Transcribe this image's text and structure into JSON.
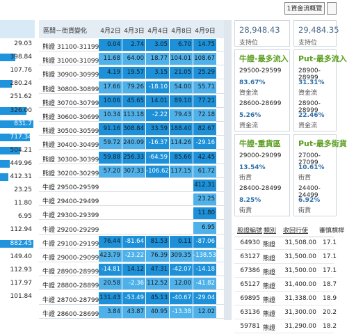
{
  "topbar": {
    "nav_button": "1資金流概覽"
  },
  "left_values": [
    {
      "value": "29.03",
      "bar": 0
    },
    {
      "value": "398.84",
      "bar": 0.45
    },
    {
      "value": "107.76",
      "bar": 0
    },
    {
      "value": "280.24",
      "bar": 0.35
    },
    {
      "value": "251.62",
      "bar": 0
    },
    {
      "value": "326.00",
      "bar": 0.8
    },
    {
      "value": "831.7",
      "bar": 1.0
    },
    {
      "value": "717.34",
      "bar": 0.9
    },
    {
      "value": "504.21",
      "bar": 0.6
    },
    {
      "value": "449.96",
      "bar": 0.3
    },
    {
      "value": "412.31",
      "bar": 0.25
    },
    {
      "value": "23.25",
      "bar": 0
    },
    {
      "value": "11.80",
      "bar": 0
    },
    {
      "value": "6.95",
      "bar": 0
    },
    {
      "value": "112.94",
      "bar": 0
    },
    {
      "value": "882.45",
      "bar": 1.0
    },
    {
      "value": "149.40",
      "bar": 0
    },
    {
      "value": "112.93",
      "bar": 0
    },
    {
      "value": "117.97",
      "bar": 0
    },
    {
      "value": "101.84",
      "bar": 0
    }
  ],
  "main_table": {
    "header_label": "區間－街貨變化",
    "dates": [
      "4月2日",
      "4月3日",
      "4月4日",
      "4月8日",
      "4月9日"
    ],
    "rows": [
      {
        "label": "熊證 31100-31199",
        "cells": [
          "0.04",
          "2.74",
          "3.05",
          "6.70",
          "14.75"
        ],
        "shade": [
          "d",
          "d",
          "d",
          "d",
          "d"
        ]
      },
      {
        "label": "熊證 31000-31099",
        "cells": [
          "11.68",
          "64.00",
          "18.77",
          "104.01",
          "108.67"
        ],
        "shade": [
          "l",
          "l",
          "l",
          "l",
          "l"
        ]
      },
      {
        "label": "熊證 30900-30999",
        "cells": [
          "4.19",
          "19.57",
          "3.15",
          "21.05",
          "25.29"
        ],
        "shade": [
          "d",
          "d",
          "d",
          "d",
          "d"
        ]
      },
      {
        "label": "熊證 30800-30899",
        "cells": [
          "17.66",
          "79.26",
          "-18.10",
          "54.00",
          "55.71"
        ],
        "shade": [
          "l",
          "l",
          "d",
          "l",
          "l"
        ]
      },
      {
        "label": "熊證 30700-30799",
        "cells": [
          "10.06",
          "45.65",
          "14.01",
          "89.10",
          "77.21"
        ],
        "shade": [
          "d",
          "d",
          "d",
          "d",
          "d"
        ]
      },
      {
        "label": "熊證 30600-30699",
        "cells": [
          "10.34",
          "113.18",
          "-2.22",
          "79.43",
          "72.18"
        ],
        "shade": [
          "l",
          "l",
          "d",
          "l",
          "l"
        ]
      },
      {
        "label": "熊證 30500-30599",
        "cells": [
          "91.16",
          "308.84",
          "33.59",
          "188.40",
          "82.67"
        ],
        "shade": [
          "d",
          "d",
          "d",
          "d",
          "d"
        ]
      },
      {
        "label": "熊證 30400-30499",
        "cells": [
          "59.72",
          "240.09",
          "-16.37",
          "114.26",
          "-29.16"
        ],
        "shade": [
          "l",
          "l",
          "d",
          "l",
          "d"
        ]
      },
      {
        "label": "熊證 30300-30399",
        "cells": [
          "59.88",
          "256.33",
          "-64.59",
          "85.66",
          "42.45"
        ],
        "shade": [
          "d",
          "d",
          "d",
          "d",
          "d"
        ]
      },
      {
        "label": "熊證 30200-30299",
        "cells": [
          "57.20",
          "307.33",
          "-106.62",
          "117.15",
          "61.72"
        ],
        "shade": [
          "l",
          "l",
          "d",
          "l",
          "l"
        ]
      },
      {
        "label": "牛證 29500-29599",
        "cells": [
          "",
          "",
          "",
          "",
          "412.31"
        ],
        "shade": [
          "w",
          "w",
          "w",
          "w",
          "d"
        ]
      },
      {
        "label": "牛證 29400-29499",
        "cells": [
          "",
          "",
          "",
          "",
          "23.25"
        ],
        "shade": [
          "w",
          "w",
          "w",
          "w",
          "l"
        ]
      },
      {
        "label": "牛證 29300-29399",
        "cells": [
          "",
          "",
          "",
          "",
          "11.80"
        ],
        "shade": [
          "w",
          "w",
          "w",
          "w",
          "d"
        ]
      },
      {
        "label": "牛證 29200-29299",
        "cells": [
          "",
          "",
          "",
          "",
          "6.95"
        ],
        "shade": [
          "w",
          "w",
          "w",
          "w",
          "l"
        ]
      },
      {
        "label": "牛證 29100-29199",
        "cells": [
          "76.44",
          "-81.64",
          "81.53",
          "0.11",
          "-87.06"
        ],
        "shade": [
          "d",
          "d",
          "d",
          "d",
          "d"
        ]
      },
      {
        "label": "牛證 29000-29099",
        "cells": [
          "423.79",
          "-23.22",
          "76.39",
          "309.35",
          "-138.53"
        ],
        "shade": [
          "l",
          "l",
          "l",
          "l",
          "l"
        ]
      },
      {
        "label": "牛證 28900-28999",
        "cells": [
          "-14.81",
          "14.12",
          "47.31",
          "-42.07",
          "-14.18"
        ],
        "shade": [
          "d",
          "d",
          "d",
          "d",
          "d"
        ]
      },
      {
        "label": "牛證 28800-28899",
        "cells": [
          "20.58",
          "-2.36",
          "112.52",
          "12.00",
          "-41.82"
        ],
        "shade": [
          "l",
          "l",
          "l",
          "l",
          "l"
        ]
      },
      {
        "label": "牛證 28700-28799",
        "cells": [
          "131.43",
          "-53.49",
          "45.13",
          "-40.67",
          "-29.04"
        ],
        "shade": [
          "d",
          "d",
          "d",
          "d",
          "d"
        ]
      },
      {
        "label": "牛證 28600-28699",
        "cells": [
          "3.84",
          "43.87",
          "40.95",
          "-13.38",
          "12.02"
        ],
        "shade": [
          "l",
          "l",
          "l",
          "l",
          "l"
        ]
      }
    ]
  },
  "support": [
    {
      "value": "28,948.43",
      "label": "支持位"
    },
    {
      "value": "29,484.35",
      "label": "支持位"
    }
  ],
  "cards": [
    {
      "title": "牛證-最多流入",
      "r1": "29500-29599",
      "p1": "83.67%",
      "t1": "資金流",
      "r2": "28600-28699",
      "p2": "5.26%",
      "t2": "資金流"
    },
    {
      "title": "Put-最多流入",
      "r1": "28900-28999",
      "p1": "31.31%",
      "t1": "資金流",
      "r2": "28900-28999",
      "p2": "22.46%",
      "t2": "資金流"
    },
    {
      "title": "牛證-重貨區",
      "r1": "29000-29099",
      "p1": "13.54%",
      "t1": "街貨",
      "r2": "28400-28499",
      "p2": "8.25%",
      "t2": "街貨"
    },
    {
      "title": "Put-最多街貨",
      "r1": "27000-27099",
      "p1": "10.61%",
      "t1": "街貨",
      "r2": "24400-24499",
      "p2": "6.92%",
      "t2": "街貨"
    }
  ],
  "right_table": {
    "headers": [
      "股證編號",
      "類別",
      "收回行使",
      "審慎槓桿"
    ],
    "rows": [
      {
        "code": "64930",
        "type": "熊證",
        "price": "31,508.00",
        "lev": "17.1"
      },
      {
        "code": "63127",
        "type": "熊證",
        "price": "31,500.00",
        "lev": "17.1"
      },
      {
        "code": "67386",
        "type": "熊證",
        "price": "31,500.00",
        "lev": "17.1"
      },
      {
        "code": "65127",
        "type": "熊證",
        "price": "31,400.00",
        "lev": "18.7"
      },
      {
        "code": "69895",
        "type": "熊證",
        "price": "31,338.00",
        "lev": "18.9"
      },
      {
        "code": "63136",
        "type": "熊證",
        "price": "31,300.00",
        "lev": "20.2"
      },
      {
        "code": "59781",
        "type": "熊證",
        "price": "31,290.00",
        "lev": "18.2"
      }
    ]
  },
  "colors": {
    "dark": "#1c90d8",
    "light": "#4fb1ea",
    "green": "#5a9e1e",
    "blue_text": "#4a6b8c"
  }
}
